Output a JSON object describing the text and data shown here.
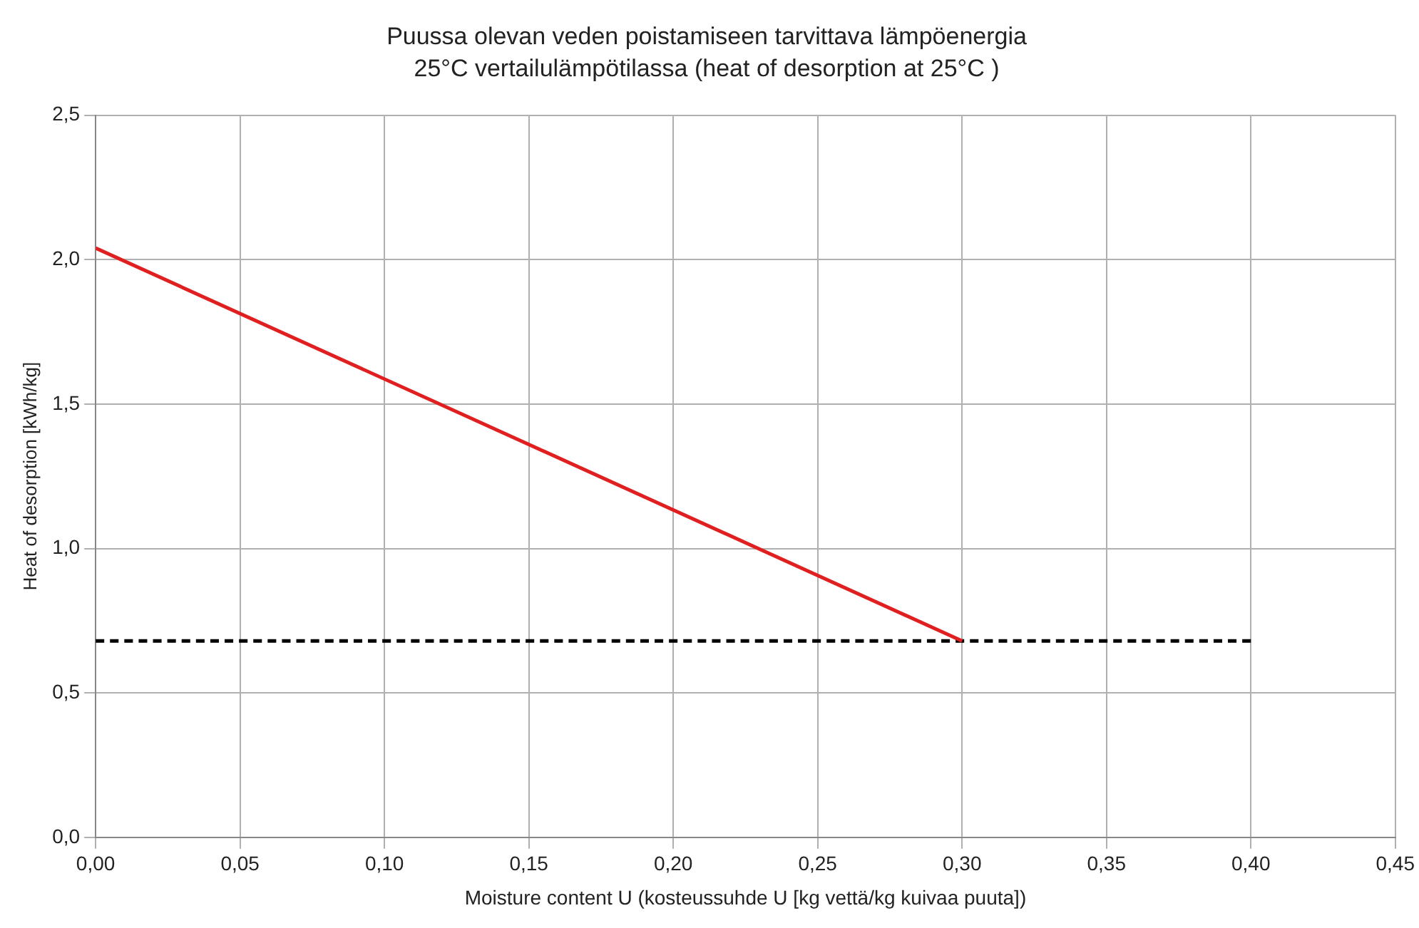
{
  "chart_data": {
    "type": "line",
    "title": "Puussa olevan veden poistamiseen tarvittava lämpöenergia",
    "subtitle": "25°C vertailulämpötilassa (heat of desorption at 25°C )",
    "xlabel": "Moisture content U (kosteussuhde U [kg vettä/kg kuivaa puuta])",
    "ylabel": "Heat of desorption [kWh/kg]",
    "series": [
      {
        "color": "#e02020",
        "line_style": "solid",
        "x": [
          0,
          0.3
        ],
        "values": [
          2.04,
          0.68
        ]
      },
      {
        "color": "#000000",
        "line_style": "dashed",
        "x": [
          0,
          0.4
        ],
        "values": [
          0.68,
          0.68
        ]
      }
    ],
    "xlim": [
      0,
      0.45
    ],
    "xticks": [
      {
        "value": 0,
        "label": "0,00"
      },
      {
        "value": 0.05,
        "label": "0,05"
      },
      {
        "value": 0.1,
        "label": "0,10"
      },
      {
        "value": 0.15,
        "label": "0,15"
      },
      {
        "value": 0.2,
        "label": "0,20"
      },
      {
        "value": 0.25,
        "label": "0,25"
      },
      {
        "value": 0.3,
        "label": "0,30"
      },
      {
        "value": 0.35,
        "label": "0,35"
      },
      {
        "value": 0.4,
        "label": "0,40"
      },
      {
        "value": 0.45,
        "label": "0,45"
      }
    ],
    "ylim": [
      0,
      2.5
    ],
    "yticks": [
      {
        "value": 0,
        "label": "0,0"
      },
      {
        "value": 0.5,
        "label": "0,5"
      },
      {
        "value": 1,
        "label": "1,0"
      },
      {
        "value": 1.5,
        "label": "1,5"
      },
      {
        "value": 2,
        "label": "2,0"
      },
      {
        "value": 2.5,
        "label": "2,5"
      }
    ],
    "grid": true,
    "legend": false,
    "marker": "none"
  }
}
